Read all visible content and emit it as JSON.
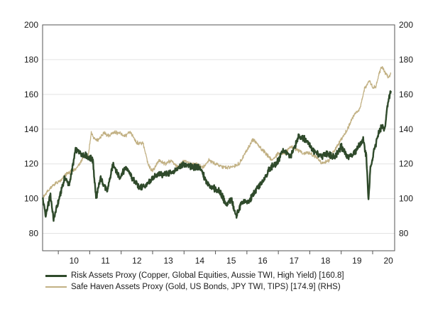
{
  "chart_data": {
    "type": "line",
    "title": "",
    "xlabel": "",
    "ylabel": "",
    "y_left": {
      "lim": [
        70,
        200
      ],
      "ticks": [
        80,
        100,
        120,
        140,
        160,
        180,
        200
      ]
    },
    "y_right": {
      "lim": [
        70,
        200
      ],
      "ticks": [
        80,
        100,
        120,
        140,
        160,
        180,
        200
      ]
    },
    "x_range": [
      2009.5,
      2020.7
    ],
    "x_ticks": [
      {
        "label": "10",
        "x": 2010
      },
      {
        "label": "11",
        "x": 2011
      },
      {
        "label": "12",
        "x": 2012
      },
      {
        "label": "13",
        "x": 2013
      },
      {
        "label": "14",
        "x": 2014
      },
      {
        "label": "15",
        "x": 2015
      },
      {
        "label": "16",
        "x": 2016
      },
      {
        "label": "17",
        "x": 2017
      },
      {
        "label": "18",
        "x": 2018
      },
      {
        "label": "19",
        "x": 2019
      },
      {
        "label": "20",
        "x": 2020
      }
    ],
    "grid": "horizontal",
    "legend_position": "bottom",
    "series": [
      {
        "name": "Risk Assets Proxy (Copper, Global Equities, Aussie TWI, High Yield) [160.8]",
        "color": "#2f4a2b",
        "axis": "left",
        "points": [
          [
            2009.5,
            100
          ],
          [
            2009.6,
            90
          ],
          [
            2009.75,
            102
          ],
          [
            2009.85,
            88
          ],
          [
            2010.0,
            98
          ],
          [
            2010.2,
            112
          ],
          [
            2010.35,
            108
          ],
          [
            2010.55,
            128
          ],
          [
            2010.75,
            126
          ],
          [
            2010.95,
            124
          ],
          [
            2011.1,
            122
          ],
          [
            2011.2,
            100
          ],
          [
            2011.35,
            112
          ],
          [
            2011.55,
            104
          ],
          [
            2011.75,
            120
          ],
          [
            2011.95,
            112
          ],
          [
            2012.15,
            118
          ],
          [
            2012.35,
            112
          ],
          [
            2012.6,
            106
          ],
          [
            2012.85,
            108
          ],
          [
            2013.0,
            112
          ],
          [
            2013.2,
            114
          ],
          [
            2013.45,
            114
          ],
          [
            2013.7,
            116
          ],
          [
            2014.0,
            120
          ],
          [
            2014.25,
            118
          ],
          [
            2014.5,
            118
          ],
          [
            2014.75,
            108
          ],
          [
            2014.95,
            106
          ],
          [
            2015.15,
            104
          ],
          [
            2015.35,
            96
          ],
          [
            2015.5,
            100
          ],
          [
            2015.65,
            90
          ],
          [
            2015.85,
            98
          ],
          [
            2016.05,
            98
          ],
          [
            2016.25,
            104
          ],
          [
            2016.5,
            110
          ],
          [
            2016.75,
            118
          ],
          [
            2016.95,
            120
          ],
          [
            2017.15,
            128
          ],
          [
            2017.4,
            124
          ],
          [
            2017.65,
            136
          ],
          [
            2017.9,
            134
          ],
          [
            2018.1,
            128
          ],
          [
            2018.35,
            124
          ],
          [
            2018.55,
            126
          ],
          [
            2018.8,
            124
          ],
          [
            2019.0,
            130
          ],
          [
            2019.2,
            124
          ],
          [
            2019.4,
            126
          ],
          [
            2019.55,
            130
          ],
          [
            2019.7,
            134
          ],
          [
            2019.8,
            124
          ],
          [
            2019.87,
            98
          ],
          [
            2019.93,
            118
          ],
          [
            2020.05,
            128
          ],
          [
            2020.2,
            138
          ],
          [
            2020.3,
            142
          ],
          [
            2020.38,
            140
          ],
          [
            2020.45,
            150
          ],
          [
            2020.52,
            158
          ],
          [
            2020.58,
            162
          ]
        ]
      },
      {
        "name": "Safe Haven Assets Proxy (Gold, US Bonds, JPY TWI, TIPS) [174.9] (RHS)",
        "color": "#c2b184",
        "axis": "right",
        "points": [
          [
            2009.5,
            100
          ],
          [
            2009.65,
            104
          ],
          [
            2009.85,
            108
          ],
          [
            2010.05,
            110
          ],
          [
            2010.25,
            114
          ],
          [
            2010.45,
            116
          ],
          [
            2010.6,
            118
          ],
          [
            2010.8,
            124
          ],
          [
            2010.95,
            124
          ],
          [
            2011.05,
            138
          ],
          [
            2011.15,
            134
          ],
          [
            2011.3,
            134
          ],
          [
            2011.45,
            138
          ],
          [
            2011.6,
            136
          ],
          [
            2011.75,
            138
          ],
          [
            2011.9,
            138
          ],
          [
            2012.1,
            136
          ],
          [
            2012.3,
            138
          ],
          [
            2012.5,
            132
          ],
          [
            2012.7,
            132
          ],
          [
            2012.85,
            120
          ],
          [
            2013.0,
            116
          ],
          [
            2013.2,
            122
          ],
          [
            2013.4,
            120
          ],
          [
            2013.6,
            122
          ],
          [
            2013.8,
            118
          ],
          [
            2014.0,
            122
          ],
          [
            2014.2,
            120
          ],
          [
            2014.4,
            120
          ],
          [
            2014.6,
            118
          ],
          [
            2014.8,
            122
          ],
          [
            2015.0,
            120
          ],
          [
            2015.25,
            118
          ],
          [
            2015.5,
            118
          ],
          [
            2015.75,
            120
          ],
          [
            2016.0,
            128
          ],
          [
            2016.2,
            134
          ],
          [
            2016.4,
            130
          ],
          [
            2016.6,
            126
          ],
          [
            2016.8,
            122
          ],
          [
            2017.0,
            126
          ],
          [
            2017.2,
            126
          ],
          [
            2017.4,
            130
          ],
          [
            2017.6,
            128
          ],
          [
            2017.8,
            126
          ],
          [
            2018.0,
            126
          ],
          [
            2018.2,
            124
          ],
          [
            2018.4,
            120
          ],
          [
            2018.6,
            122
          ],
          [
            2018.8,
            128
          ],
          [
            2019.0,
            134
          ],
          [
            2019.2,
            140
          ],
          [
            2019.4,
            148
          ],
          [
            2019.6,
            152
          ],
          [
            2019.75,
            164
          ],
          [
            2019.9,
            168
          ],
          [
            2020.0,
            164
          ],
          [
            2020.1,
            164
          ],
          [
            2020.2,
            172
          ],
          [
            2020.3,
            176
          ],
          [
            2020.4,
            172
          ],
          [
            2020.5,
            170
          ],
          [
            2020.58,
            172
          ]
        ]
      }
    ]
  }
}
